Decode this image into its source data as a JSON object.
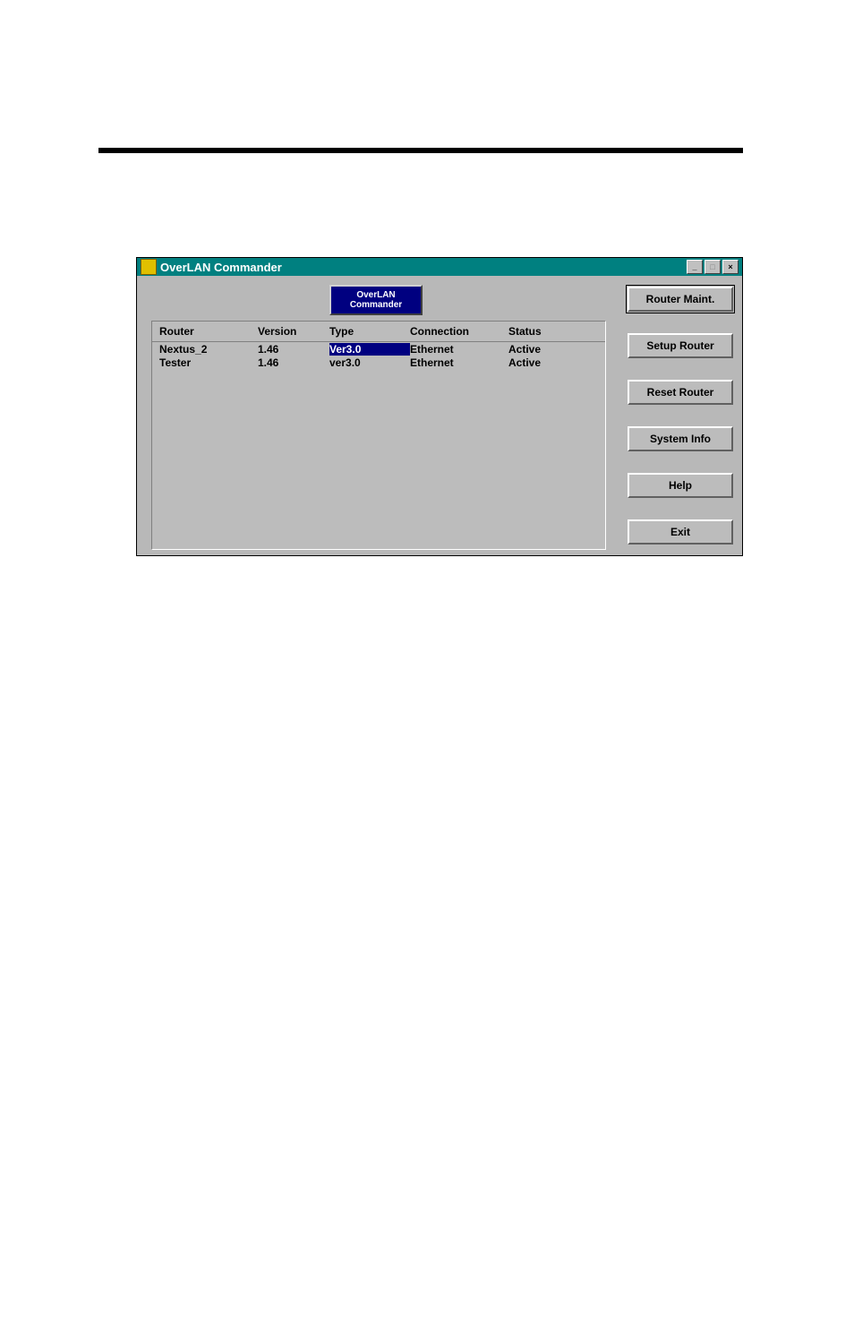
{
  "colors": {
    "titlebar_bg": "#008080",
    "titlebar_fg": "#ffffff",
    "window_bg": "#b8b8b8",
    "panel_bg": "#bcbcbc",
    "accent_bg": "#000080",
    "accent_fg": "#ffffff",
    "rule": "#000000"
  },
  "window": {
    "title": "OverLAN Commander",
    "sys": {
      "min": "_",
      "max": "□",
      "close": "×"
    }
  },
  "header_button": "OverLAN\nCommander",
  "table": {
    "headers": {
      "router": "Router",
      "version": "Version",
      "type": "Type",
      "connection": "Connection",
      "status": "Status"
    },
    "rows": [
      {
        "router": "Nextus_2",
        "version": "1.46",
        "type": "Ver3.0",
        "connection": "Ethernet",
        "status": "Active",
        "selected": true
      },
      {
        "router": "Tester",
        "version": "1.46",
        "type": "ver3.0",
        "connection": "Ethernet",
        "status": "Active",
        "selected": false
      }
    ]
  },
  "buttons": {
    "router_maint": "Router Maint.",
    "setup_router": "Setup Router",
    "reset_router": "Reset Router",
    "system_info": "System Info",
    "help": "Help",
    "exit": "Exit"
  }
}
